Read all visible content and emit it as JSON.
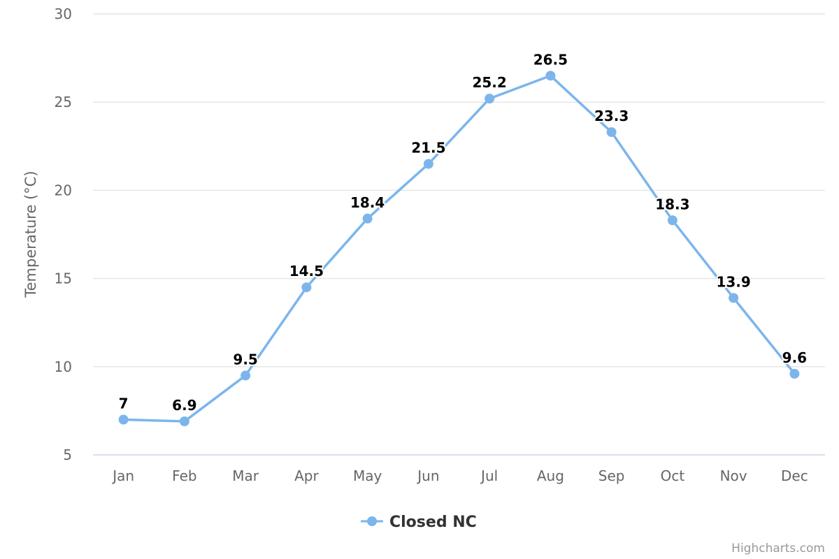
{
  "chart_data": {
    "type": "line",
    "title": "",
    "xlabel": "",
    "ylabel": "Temperature (°C)",
    "categories": [
      "Jan",
      "Feb",
      "Mar",
      "Apr",
      "May",
      "Jun",
      "Jul",
      "Aug",
      "Sep",
      "Oct",
      "Nov",
      "Dec"
    ],
    "series": [
      {
        "name": "Closed NC",
        "values": [
          7,
          6.9,
          9.5,
          14.5,
          18.4,
          21.5,
          25.2,
          26.5,
          23.3,
          18.3,
          13.9,
          9.6
        ],
        "color": "#7cb5ec"
      }
    ],
    "ylim": [
      5,
      30
    ],
    "yticks": [
      5,
      10,
      15,
      20,
      25,
      30
    ],
    "grid": true,
    "data_labels": true,
    "legend_position": "bottom-center"
  },
  "credits": "Highcharts.com",
  "colors": {
    "grid": "#e6e6e6",
    "axis_line": "#ccd6eb",
    "text": "#666666",
    "series": "#7cb5ec"
  }
}
